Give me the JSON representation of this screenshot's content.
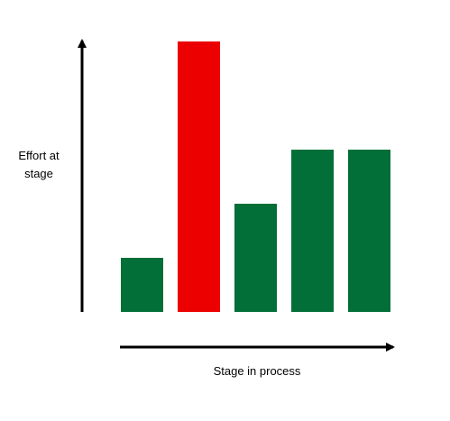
{
  "chart_data": {
    "type": "bar",
    "ylabel": "Effort at stage",
    "xlabel": "Stage in process",
    "categories": [
      null,
      null,
      null,
      null,
      null
    ],
    "values": [
      1,
      5,
      2,
      3,
      3
    ],
    "colors": [
      "#036f38",
      "#ec0000",
      "#036f38",
      "#036f38",
      "#036f38"
    ],
    "ylim": [
      0,
      5
    ]
  }
}
